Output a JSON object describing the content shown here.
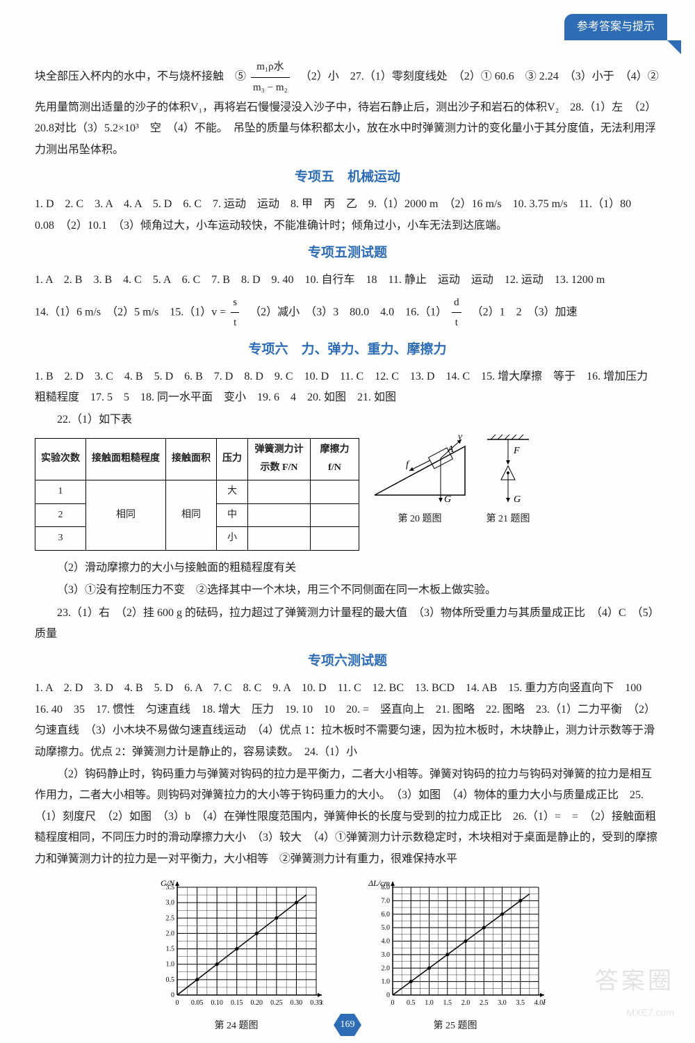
{
  "header_tab": "参考答案与提示",
  "para1_pre": "块全部压入杯内的水中，不与烧杯接触　⑤",
  "frac1_num": "m₁ρ水",
  "frac1_den": "m₃ − m₂",
  "para1_rest": "　（2）小　27.（1）零刻度线处　（2）① 60.6　③ 2.24　（3）小于　（4）②先用量筒测出适量的沙子的体积V₁，再将岩石慢慢浸没入沙子中，待岩石静止后，测出沙子和岩石的体积V₂　28.（1）左　（2）20.8对比（3）5.2×10³　空　（4）不能。　吊坠的质量与体积都太小，放在水中时弹簧测力计的变化量小于其分度值，无法利用浮力测出吊坠体积。",
  "sec5_title": "专项五　机械运动",
  "sec5_p1": "1. D　2. C　3. A　4. A　5. D　6. C　7. 运动　运动　8. 甲　丙　乙　9.（1）2000 m　（2）16 m/s　10. 3.75 m/s　11.（1）80　0.08　（2）10.1　（3）倾角过大，小车运动较快，不能准确计时；倾角过小，小车无法到达底端。",
  "sec5t_title": "专项五测试题",
  "sec5t_a": "1. A　2. B　3. B　4. C　5. A　6. C　7. B　8. D　9. 40　10. 自行车　18　11. 静止　运动　运动　12. 运动　13. 1200 m",
  "sec5t_b_pre": "14.（1）6 m/s　（2）5 m/s　15.（1）v = ",
  "frac_st_num": "s",
  "frac_st_den": "t",
  "sec5t_b_mid": "　（2）减小　（3）3　80.0　4.0　16.（1）",
  "frac_dt_num": "d",
  "frac_dt_den": "t",
  "sec5t_b_end": "　（2）1　2　（3）加速",
  "sec6_title": "专项六　力、弹力、重力、摩擦力",
  "sec6_p1": "1. B　2. D　3. C　4. B　5. D　6. B　7. D　8. D　9. C　10. D　11. C　12. C　13. D　14. C　15. 增大摩擦　等于　16. 增加压力　粗糙程度　17. 5　5　18. 同一水平面　变小　19. 6　4　20. 如图　21. 如图",
  "sec6_22": "22.（1）如下表",
  "table": {
    "headers": [
      "实验次数",
      "接触面粗糙程度",
      "接触面积",
      "压力",
      "弹簧测力计示数 F/N",
      "摩擦力 f/N"
    ],
    "rows": [
      [
        "1",
        "",
        "",
        "大",
        "",
        ""
      ],
      [
        "2",
        "相同",
        "相同",
        "中",
        "",
        ""
      ],
      [
        "3",
        "",
        "",
        "小",
        "",
        ""
      ]
    ]
  },
  "fig20_cap": "第 20 题图",
  "fig21_cap": "第 21 题图",
  "sec6_22_2": "（2）滑动摩擦力的大小与接触面的粗糙程度有关",
  "sec6_22_3": "（3）①没有控制压力不变　②选择其中一个木块，用三个不同侧面在同一木板上做实验。",
  "sec6_23": "23.（1）右　（2）挂 600 g 的砝码，拉力超过了弹簧测力计量程的最大值　（3）物体所受重力与其质量成正比　（4）C　（5）质量",
  "sec6t_title": "专项六测试题",
  "sec6t_p1": "1. A　2. D　3. D　4. B　5. D　6. A　7. C　8. C　9. A　10. D　11. C　12. BC　13. BCD　14. AB　15. 重力方向竖直向下　100　16. 40　35　17. 惯性　匀速直线　18. 增大　压力　19. 10　10　20. =　竖直向上　21. 图略　22. 图略　23.（1）二力平衡　（2）匀速直线　（3）小木块不易做匀速直线运动　（4）优点 1：拉木板时不需要匀速，因为拉木板时，木块静止，测力计示数等于滑动摩擦力。优点 2：弹簧测力计是静止的，容易读数。　24.（1）小",
  "sec6t_p2": "（2）钩码静止时，钩码重力与弹簧对钩码的拉力是平衡力，二者大小相等。弹簧对钩码的拉力与钩码对弹簧的拉力是相互作用力，二者大小相等。则钩码对弹簧拉力的大小等于钩码重力的大小。　（3）如图　（4）物体的重力大小与质量成正比　25.（1）刻度尺　（2）如图　（3）b　（4）在弹性限度范围内，弹簧伸长的长度与受到的拉力成正比　26.（1）=　=　（2）接触面粗糙程度相同，不同压力时的滑动摩擦力大小　（3）较大　（4）①弹簧测力计示数稳定时，木块相对于桌面是静止的，受到的摩擦力和弹簧测力计的拉力是一对平衡力，大小相等　②弹簧测力计有重力，很难保持水平",
  "fig24_cap": "第 24 题图",
  "fig25_cap": "第 25 题图",
  "chart24": {
    "ylabel": "G/N",
    "xlabel": "m/kg",
    "xticks": [
      "0",
      "0.05",
      "0.10",
      "0.15",
      "0.20",
      "0.25",
      "0.30",
      "0.35"
    ],
    "yticks": [
      "0",
      "0.5",
      "1.0",
      "1.5",
      "2.0",
      "2.5",
      "3.0",
      "3.5"
    ],
    "points": [
      [
        0.05,
        0.5
      ],
      [
        0.1,
        1.0
      ],
      [
        0.15,
        1.5
      ],
      [
        0.2,
        2.0
      ],
      [
        0.25,
        2.5
      ],
      [
        0.3,
        3.0
      ]
    ],
    "grid_color": "#000",
    "line_color": "#000",
    "bg": "#fff",
    "xstep": 0.05,
    "ystep": 0.5
  },
  "chart25": {
    "ylabel": "ΔL/cm",
    "xlabel": "F/N",
    "xticks": [
      "0",
      "0.5",
      "1.0",
      "1.5",
      "2.0",
      "2.5",
      "3.0",
      "3.5",
      "4.0"
    ],
    "yticks": [
      "0",
      "1.0",
      "2.0",
      "3.0",
      "4.0",
      "5.0",
      "6.0",
      "7.0",
      "8.0"
    ],
    "points": [
      [
        0.5,
        1.0
      ],
      [
        1.0,
        2.0
      ],
      [
        1.5,
        3.0
      ],
      [
        2.0,
        4.0
      ],
      [
        2.5,
        5.0
      ],
      [
        3.0,
        6.0
      ],
      [
        3.5,
        7.0
      ]
    ],
    "grid_color": "#000",
    "line_color": "#000",
    "bg": "#fff",
    "xstep": 0.5,
    "ystep": 1.0
  },
  "page_number": "169",
  "watermark_big": "答案圈",
  "watermark_url": "MXE7.com"
}
